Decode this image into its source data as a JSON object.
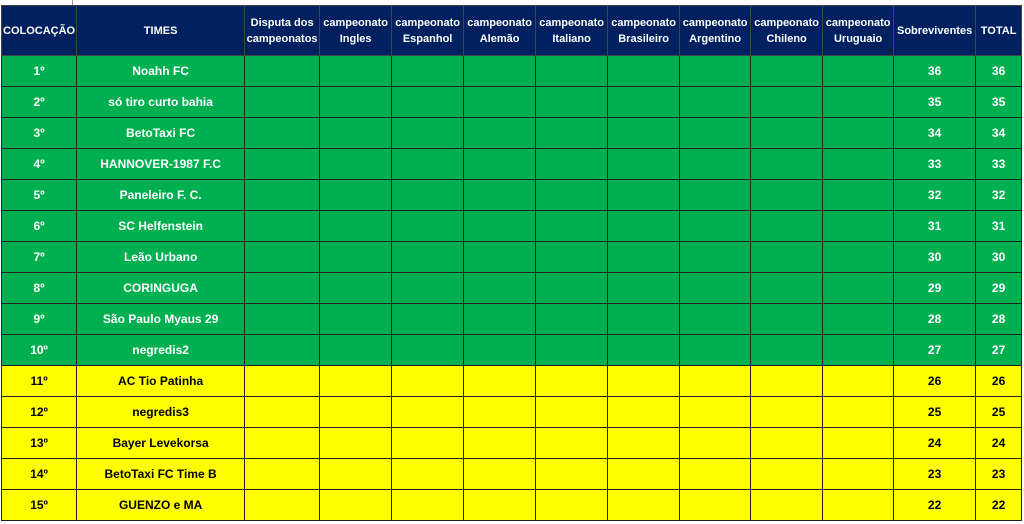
{
  "colors": {
    "header": "#002060",
    "top": "#00b050",
    "mid": "#ffff00"
  },
  "headers": [
    "COLOCAÇÃO",
    "TIMES",
    "Disputa dos campeonatos",
    "campeonato Ingles",
    "campeonato Espanhol",
    "campeonato Alemão",
    "campeonato Italiano",
    "campeonato Brasileiro",
    "campeonato Argentino",
    "campeonato Chileno",
    "campeonato Uruguaio",
    "Sobreviventes",
    "TOTAL"
  ],
  "rows": [
    {
      "pos": "1º",
      "team": "Noahh FC",
      "sobreviventes": "36",
      "total": "36",
      "zone": "g"
    },
    {
      "pos": "2º",
      "team": "só tiro curto bahia",
      "sobreviventes": "35",
      "total": "35",
      "zone": "g"
    },
    {
      "pos": "3º",
      "team": "BetoTaxi FC",
      "sobreviventes": "34",
      "total": "34",
      "zone": "g"
    },
    {
      "pos": "4º",
      "team": "HANNOVER-1987 F.C",
      "sobreviventes": "33",
      "total": "33",
      "zone": "g"
    },
    {
      "pos": "5º",
      "team": "Paneleiro F. C.",
      "sobreviventes": "32",
      "total": "32",
      "zone": "g"
    },
    {
      "pos": "6º",
      "team": "SC Helfenstein",
      "sobreviventes": "31",
      "total": "31",
      "zone": "g"
    },
    {
      "pos": "7º",
      "team": "Leão Urbano",
      "sobreviventes": "30",
      "total": "30",
      "zone": "g"
    },
    {
      "pos": "8º",
      "team": "CORINGUGA",
      "sobreviventes": "29",
      "total": "29",
      "zone": "g"
    },
    {
      "pos": "9º",
      "team": "São Paulo Myaus 29",
      "sobreviventes": "28",
      "total": "28",
      "zone": "g"
    },
    {
      "pos": "10º",
      "team": "negredis2",
      "sobreviventes": "27",
      "total": "27",
      "zone": "g"
    },
    {
      "pos": "11º",
      "team": "AC Tio Patinha",
      "sobreviventes": "26",
      "total": "26",
      "zone": "y"
    },
    {
      "pos": "12º",
      "team": "negredis3",
      "sobreviventes": "25",
      "total": "25",
      "zone": "y"
    },
    {
      "pos": "13º",
      "team": "Bayer Levekorsa",
      "sobreviventes": "24",
      "total": "24",
      "zone": "y"
    },
    {
      "pos": "14º",
      "team": "BetoTaxi FC Time B",
      "sobreviventes": "23",
      "total": "23",
      "zone": "y"
    },
    {
      "pos": "15º",
      "team": "GUENZO e MA",
      "sobreviventes": "22",
      "total": "22",
      "zone": "y"
    }
  ]
}
